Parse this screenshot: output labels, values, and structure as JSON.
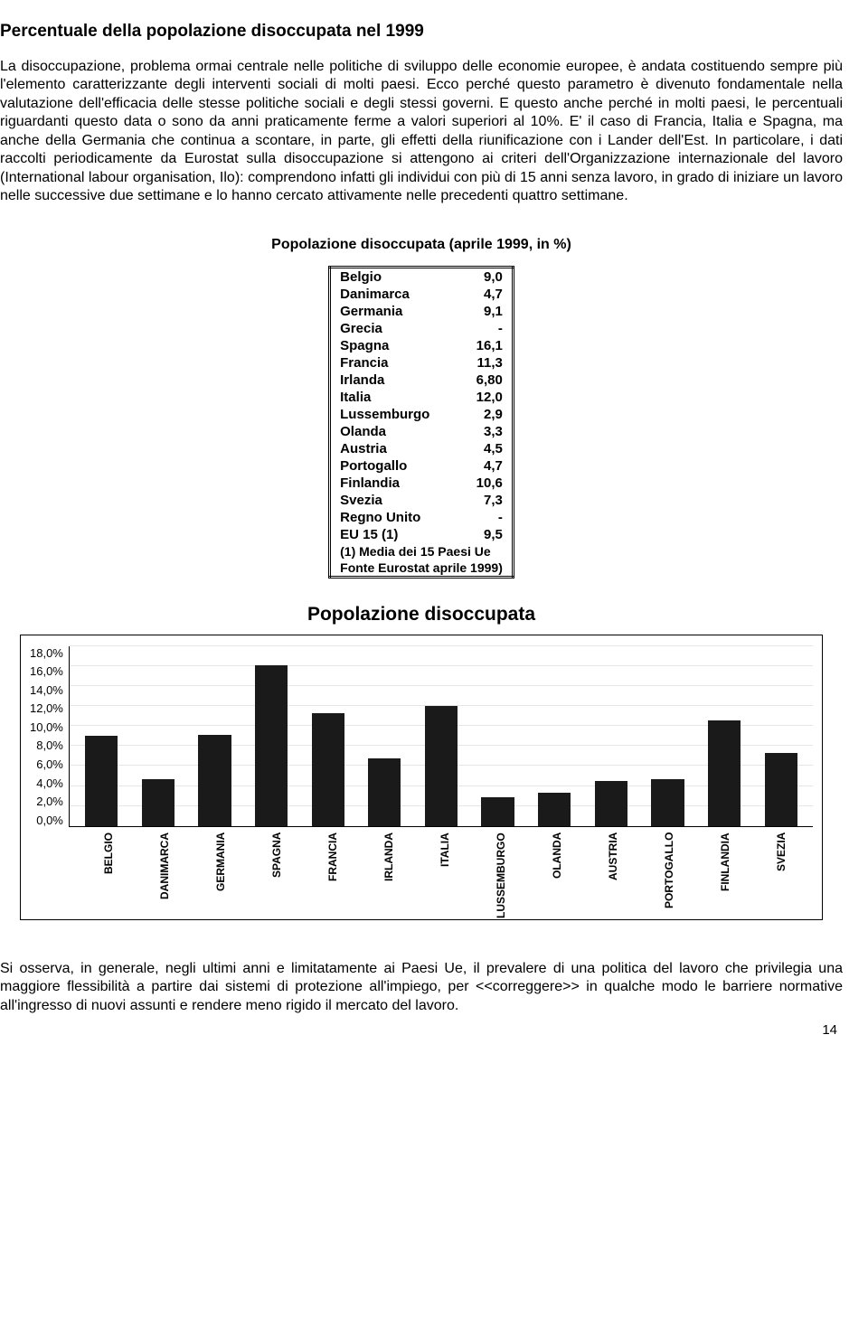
{
  "title": "Percentuale della popolazione disoccupata nel 1999",
  "para1": "La disoccupazione, problema ormai centrale nelle politiche di sviluppo delle economie europee, è andata costituendo sempre più l'elemento caratterizzante degli interventi sociali di molti paesi. Ecco perché questo parametro è divenuto fondamentale nella valutazione dell'efficacia delle stesse politiche sociali e degli stessi governi. E questo anche perché in molti paesi, le percentuali riguardanti questo data o sono da anni praticamente ferme a valori superiori al 10%. E' il caso di Francia, Italia e Spagna, ma anche della Germania che continua a scontare, in parte, gli effetti della riunificazione con i Lander dell'Est. In particolare, i dati raccolti periodicamente da Eurostat sulla disoccupazione si attengono ai criteri dell'Organizzazione internazionale del lavoro (International labour organisation, Ilo): comprendono infatti gli individui con più di 15 anni senza lavoro, in grado di iniziare un lavoro nelle successive due settimane e lo hanno cercato attivamente nelle precedenti quattro settimane.",
  "table_caption": "Popolazione disoccupata (aprile 1999, in %)",
  "table": {
    "rows": [
      {
        "country": "Belgio",
        "value": "9,0"
      },
      {
        "country": "Danimarca",
        "value": "4,7"
      },
      {
        "country": "Germania",
        "value": "9,1"
      },
      {
        "country": "Grecia",
        "value": "-"
      },
      {
        "country": "Spagna",
        "value": "16,1"
      },
      {
        "country": "Francia",
        "value": "11,3"
      },
      {
        "country": "Irlanda",
        "value": "6,80"
      },
      {
        "country": "Italia",
        "value": "12,0"
      },
      {
        "country": "Lussemburgo",
        "value": "2,9"
      },
      {
        "country": "Olanda",
        "value": "3,3"
      },
      {
        "country": "Austria",
        "value": "4,5"
      },
      {
        "country": "Portogallo",
        "value": "4,7"
      },
      {
        "country": "Finlandia",
        "value": "10,6"
      },
      {
        "country": "Svezia",
        "value": "7,3"
      },
      {
        "country": "Regno Unito",
        "value": "-"
      },
      {
        "country": "EU 15 (1)",
        "value": "9,5"
      }
    ],
    "note1": "(1) Media dei 15 Paesi Ue",
    "note2": "Fonte Eurostat aprile 1999)"
  },
  "chart": {
    "title": "Popolazione disoccupata",
    "type": "bar",
    "ylim": [
      0,
      18
    ],
    "ytick_step": 2,
    "yticks": [
      "18,0%",
      "16,0%",
      "14,0%",
      "12,0%",
      "10,0%",
      "8,0%",
      "6,0%",
      "4,0%",
      "2,0%",
      "0,0%"
    ],
    "categories": [
      "BELGIO",
      "DANIMARCA",
      "GERMANIA",
      "SPAGNA",
      "FRANCIA",
      "IRLANDA",
      "ITALIA",
      "LUSSEMBURGO",
      "OLANDA",
      "AUSTRIA",
      "PORTOGALLO",
      "FINLANDIA",
      "SVEZIA"
    ],
    "values": [
      9.0,
      4.7,
      9.1,
      16.1,
      11.3,
      6.8,
      12.0,
      2.9,
      3.3,
      4.5,
      4.7,
      10.6,
      7.3
    ],
    "bar_color": "#1a1a1a",
    "grid_color": "#e6e6e6",
    "background_color": "#ffffff",
    "title_fontsize": 21,
    "label_fontsize": 12
  },
  "para2": "Si osserva, in generale, negli ultimi anni e limitatamente ai Paesi Ue, il prevalere di una politica del lavoro che privilegia una maggiore flessibilità a partire dai sistemi di protezione all'impiego, per <<correggere>> in qualche modo le barriere normative all'ingresso di nuovi assunti e rendere meno rigido il mercato del lavoro.",
  "page_num": "14"
}
